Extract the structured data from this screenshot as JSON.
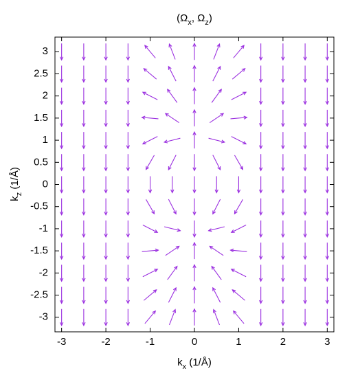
{
  "chart_data": {
    "type": "quiver",
    "title_parts": [
      "(Ω",
      "x",
      ", Ω",
      "z",
      ")"
    ],
    "xlabel_parts": [
      "k",
      "x",
      " (1/Å)"
    ],
    "ylabel_parts": [
      "k",
      "z",
      " (1/Å)"
    ],
    "color": "#9b30e0",
    "xlim": [
      -3.15,
      3.15
    ],
    "ylim": [
      -3.33,
      3.33
    ],
    "xticks": [
      -3,
      -2,
      -1,
      0,
      1,
      2,
      3
    ],
    "yticks": [
      -3,
      -2.5,
      -2,
      -1.5,
      -1,
      -0.5,
      0,
      0.5,
      1,
      1.5,
      2,
      2.5,
      3
    ],
    "x": [
      -3,
      -2.5,
      -2,
      -1.5,
      -1,
      -0.5,
      0,
      0.5,
      1,
      1.5,
      2,
      2.5,
      3
    ],
    "y": [
      3,
      2.5,
      2,
      1.5,
      1,
      0.5,
      0,
      -0.5,
      -1,
      -1.5,
      -2,
      -2.5,
      -3
    ],
    "angles": [
      [
        -90,
        -90,
        -90,
        -90,
        130,
        111,
        90,
        69,
        50,
        -90,
        -90,
        -90,
        -90
      ],
      [
        -90,
        -90,
        -90,
        -90,
        140,
        117,
        90,
        63,
        40,
        -90,
        -90,
        -90,
        -90
      ],
      [
        -90,
        -90,
        -90,
        -90,
        153,
        126,
        90,
        54,
        27,
        -90,
        -90,
        -90,
        -90
      ],
      [
        -90,
        -90,
        -90,
        -90,
        175,
        146,
        90,
        34,
        5,
        -90,
        -90,
        -90,
        -90
      ],
      [
        -90,
        -90,
        -90,
        -90,
        -153,
        -166,
        90,
        -14,
        -27,
        -90,
        -90,
        -90,
        -90
      ],
      [
        -90,
        -90,
        -90,
        -90,
        -120,
        -117,
        -90,
        -63,
        -60,
        -90,
        -90,
        -90,
        -90
      ],
      [
        -90,
        -90,
        -90,
        -90,
        -90,
        -90,
        -90,
        -90,
        -90,
        -90,
        -90,
        -90,
        -90
      ],
      [
        -90,
        -90,
        -90,
        -90,
        -60,
        -63,
        -90,
        -117,
        -120,
        -90,
        -90,
        -90,
        -90
      ],
      [
        -90,
        -90,
        -90,
        -90,
        -27,
        -14,
        -90,
        -166,
        -153,
        -90,
        -90,
        -90,
        -90
      ],
      [
        -90,
        -90,
        -90,
        -90,
        5,
        34,
        90,
        146,
        175,
        -90,
        -90,
        -90,
        -90
      ],
      [
        -90,
        -90,
        -90,
        -90,
        27,
        54,
        90,
        126,
        153,
        -90,
        -90,
        -90,
        -90
      ],
      [
        -90,
        -90,
        -90,
        -90,
        40,
        63,
        90,
        117,
        140,
        -90,
        -90,
        -90,
        -90
      ],
      [
        -90,
        -90,
        -90,
        -90,
        50,
        69,
        90,
        111,
        130,
        -90,
        -90,
        -90,
        -90
      ]
    ]
  }
}
